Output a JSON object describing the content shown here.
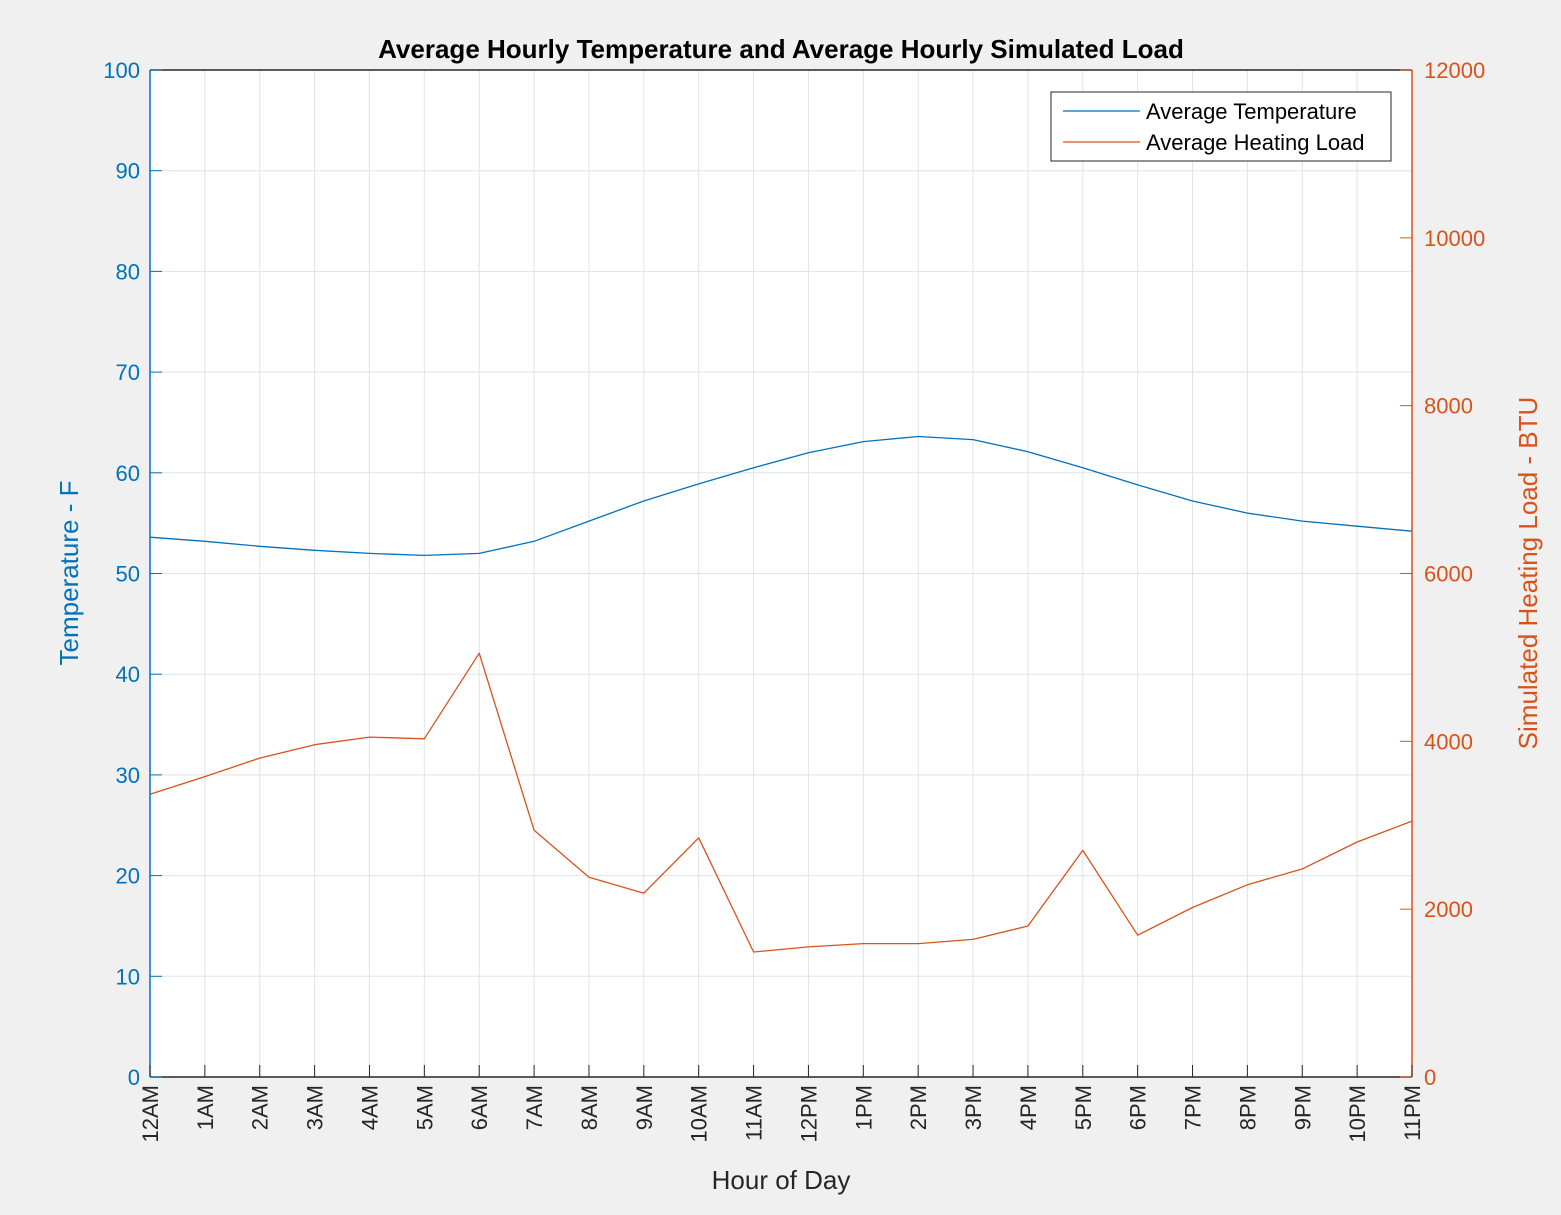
{
  "chart_data": {
    "type": "line",
    "title": "Average Hourly Temperature and Average Hourly Simulated Load",
    "xlabel": "Hour of Day",
    "ylabel_left": "Temperature - F",
    "ylabel_right": "Simulated Heating Load - BTU",
    "categories": [
      "12AM",
      "1AM",
      "2AM",
      "3AM",
      "4AM",
      "5AM",
      "6AM",
      "7AM",
      "8AM",
      "9AM",
      "10AM",
      "11AM",
      "12PM",
      "1PM",
      "2PM",
      "3PM",
      "4PM",
      "5PM",
      "6PM",
      "7PM",
      "8PM",
      "9PM",
      "10PM",
      "11PM"
    ],
    "ylim_left": [
      0,
      100
    ],
    "yticks_left": [
      "0",
      "10",
      "20",
      "30",
      "40",
      "50",
      "60",
      "70",
      "80",
      "90",
      "100"
    ],
    "ylim_right": [
      0,
      12000
    ],
    "yticks_right": [
      "0",
      "2000",
      "4000",
      "6000",
      "8000",
      "10000",
      "12000"
    ],
    "grid": true,
    "legend_position": "top-right",
    "series": [
      {
        "name": "Average Temperature",
        "axis": "left",
        "color": "#0072bd",
        "values": [
          53.6,
          53.2,
          52.7,
          52.3,
          52.0,
          51.8,
          52.0,
          53.2,
          55.2,
          57.2,
          58.9,
          60.5,
          62.0,
          63.1,
          63.6,
          63.3,
          62.1,
          60.5,
          58.8,
          57.2,
          56.0,
          55.2,
          54.7,
          54.2
        ]
      },
      {
        "name": "Average Heating Load",
        "axis": "right",
        "color": "#d95319",
        "values": [
          3370,
          3580,
          3800,
          3960,
          4050,
          4030,
          5050,
          2940,
          2380,
          2190,
          2850,
          1490,
          1550,
          1590,
          1590,
          1640,
          1800,
          2700,
          1690,
          2020,
          2290,
          2480,
          2800,
          3050
        ]
      }
    ]
  }
}
